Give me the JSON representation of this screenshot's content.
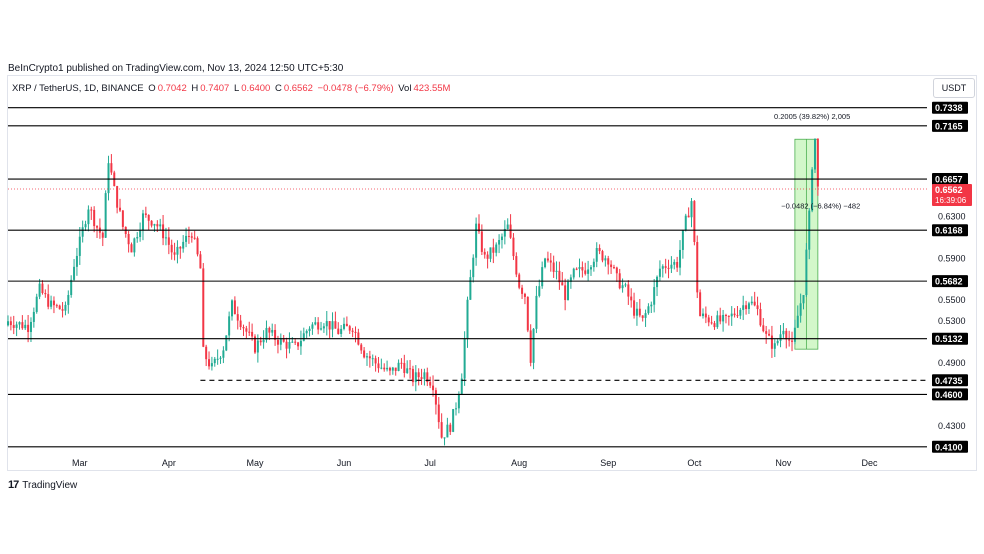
{
  "header": {
    "published": "BeInCrypto1 published on TradingView.com, Nov 13, 2024 12:50 UTC+5:30"
  },
  "legend": {
    "symbol": "XRP / TetherUS, 1D, BINANCE",
    "open_label": "O",
    "open": "0.7042",
    "high_label": "H",
    "high": "0.7407",
    "low_label": "L",
    "low": "0.6400",
    "close_label": "C",
    "close": "0.6562",
    "change": "−0.0478 (−6.79%)",
    "vol_label": "Vol",
    "vol": "423.55M"
  },
  "currency": "USDT",
  "footer": {
    "brand": "TradingView",
    "logo_icon": "tradingview-logo-icon"
  },
  "colors": {
    "up": "#22ab94",
    "down": "#f23645",
    "line": "#000000",
    "measure_fill": "#c8f5bd",
    "measure_edge": "#4caf50",
    "current_price_bg": "#f23645"
  },
  "chart_data": {
    "type": "candlestick",
    "ylim": [
      0.405,
      0.745
    ],
    "x_range": [
      "2024-02-05",
      "2024-12-21"
    ],
    "x_ticks": [
      {
        "label": "Mar",
        "date": "2024-03-01"
      },
      {
        "label": "Apr",
        "date": "2024-04-01"
      },
      {
        "label": "May",
        "date": "2024-05-01"
      },
      {
        "label": "Jun",
        "date": "2024-06-01"
      },
      {
        "label": "Jul",
        "date": "2024-07-01"
      },
      {
        "label": "Aug",
        "date": "2024-08-01"
      },
      {
        "label": "Sep",
        "date": "2024-09-01"
      },
      {
        "label": "Oct",
        "date": "2024-10-01"
      },
      {
        "label": "Nov",
        "date": "2024-11-01"
      },
      {
        "label": "Dec",
        "date": "2024-12-01"
      }
    ],
    "y_ticks": [
      "0.6300",
      "0.5900",
      "0.5500",
      "0.5300",
      "0.4900",
      "0.4300"
    ],
    "levels": [
      {
        "label": "0.7338",
        "value": 0.7338,
        "style": "solid"
      },
      {
        "label": "0.7165",
        "value": 0.7165,
        "style": "solid"
      },
      {
        "label": "0.6657",
        "value": 0.6657,
        "style": "solid"
      },
      {
        "label": "0.6168",
        "value": 0.6168,
        "style": "solid"
      },
      {
        "label": "0.5682",
        "value": 0.5682,
        "style": "solid"
      },
      {
        "label": "0.5132",
        "value": 0.5132,
        "style": "solid"
      },
      {
        "label": "0.4735",
        "value": 0.4735,
        "style": "dashed"
      },
      {
        "label": "0.4600",
        "value": 0.46,
        "style": "solid"
      },
      {
        "label": "0.4100",
        "value": 0.41,
        "style": "solid"
      }
    ],
    "current_price": {
      "label": "0.6562",
      "value": 0.6562,
      "countdown": "16:39:06"
    },
    "annotations": [
      {
        "text": "0.2005 (39.82%) 2,005",
        "date": "2024-11-11",
        "value": 0.723
      },
      {
        "text": "−0.0482 (−6.84%) −482",
        "date": "2024-11-14",
        "value": 0.6375
      }
    ],
    "measure_box": {
      "start": "2024-11-05",
      "end": "2024-11-13",
      "low": 0.5032,
      "high": 0.7037
    },
    "anchor_points": [
      {
        "date": "2024-02-05",
        "value": 0.53
      },
      {
        "date": "2024-02-12",
        "value": 0.525
      },
      {
        "date": "2024-02-16",
        "value": 0.56
      },
      {
        "date": "2024-02-20",
        "value": 0.545
      },
      {
        "date": "2024-02-25",
        "value": 0.54
      },
      {
        "date": "2024-02-28",
        "value": 0.585
      },
      {
        "date": "2024-03-01",
        "value": 0.605
      },
      {
        "date": "2024-03-04",
        "value": 0.64
      },
      {
        "date": "2024-03-07",
        "value": 0.62
      },
      {
        "date": "2024-03-09",
        "value": 0.61
      },
      {
        "date": "2024-03-11",
        "value": 0.685
      },
      {
        "date": "2024-03-13",
        "value": 0.655
      },
      {
        "date": "2024-03-16",
        "value": 0.62
      },
      {
        "date": "2024-03-19",
        "value": 0.6
      },
      {
        "date": "2024-03-23",
        "value": 0.63
      },
      {
        "date": "2024-03-27",
        "value": 0.625
      },
      {
        "date": "2024-03-31",
        "value": 0.61
      },
      {
        "date": "2024-04-03",
        "value": 0.59
      },
      {
        "date": "2024-04-06",
        "value": 0.605
      },
      {
        "date": "2024-04-09",
        "value": 0.615
      },
      {
        "date": "2024-04-12",
        "value": 0.58
      },
      {
        "date": "2024-04-13",
        "value": 0.5
      },
      {
        "date": "2024-04-16",
        "value": 0.485
      },
      {
        "date": "2024-04-20",
        "value": 0.505
      },
      {
        "date": "2024-04-23",
        "value": 0.545
      },
      {
        "date": "2024-04-27",
        "value": 0.525
      },
      {
        "date": "2024-05-01",
        "value": 0.505
      },
      {
        "date": "2024-05-05",
        "value": 0.52
      },
      {
        "date": "2024-05-10",
        "value": 0.51
      },
      {
        "date": "2024-05-15",
        "value": 0.505
      },
      {
        "date": "2024-05-20",
        "value": 0.525
      },
      {
        "date": "2024-05-25",
        "value": 0.53
      },
      {
        "date": "2024-05-30",
        "value": 0.52
      },
      {
        "date": "2024-06-04",
        "value": 0.525
      },
      {
        "date": "2024-06-08",
        "value": 0.5
      },
      {
        "date": "2024-06-12",
        "value": 0.49
      },
      {
        "date": "2024-06-17",
        "value": 0.48
      },
      {
        "date": "2024-06-21",
        "value": 0.49
      },
      {
        "date": "2024-06-25",
        "value": 0.475
      },
      {
        "date": "2024-06-29",
        "value": 0.48
      },
      {
        "date": "2024-07-02",
        "value": 0.47
      },
      {
        "date": "2024-07-05",
        "value": 0.42
      },
      {
        "date": "2024-07-08",
        "value": 0.43
      },
      {
        "date": "2024-07-10",
        "value": 0.45
      },
      {
        "date": "2024-07-12",
        "value": 0.48
      },
      {
        "date": "2024-07-14",
        "value": 0.545
      },
      {
        "date": "2024-07-17",
        "value": 0.62
      },
      {
        "date": "2024-07-20",
        "value": 0.59
      },
      {
        "date": "2024-07-24",
        "value": 0.6
      },
      {
        "date": "2024-07-28",
        "value": 0.62
      },
      {
        "date": "2024-08-01",
        "value": 0.565
      },
      {
        "date": "2024-08-03",
        "value": 0.555
      },
      {
        "date": "2024-08-05",
        "value": 0.495
      },
      {
        "date": "2024-08-07",
        "value": 0.55
      },
      {
        "date": "2024-08-10",
        "value": 0.59
      },
      {
        "date": "2024-08-14",
        "value": 0.575
      },
      {
        "date": "2024-08-17",
        "value": 0.555
      },
      {
        "date": "2024-08-20",
        "value": 0.575
      },
      {
        "date": "2024-08-24",
        "value": 0.58
      },
      {
        "date": "2024-08-28",
        "value": 0.595
      },
      {
        "date": "2024-09-01",
        "value": 0.59
      },
      {
        "date": "2024-09-04",
        "value": 0.57
      },
      {
        "date": "2024-09-07",
        "value": 0.56
      },
      {
        "date": "2024-09-10",
        "value": 0.54
      },
      {
        "date": "2024-09-13",
        "value": 0.53
      },
      {
        "date": "2024-09-16",
        "value": 0.55
      },
      {
        "date": "2024-09-19",
        "value": 0.58
      },
      {
        "date": "2024-09-22",
        "value": 0.585
      },
      {
        "date": "2024-09-25",
        "value": 0.585
      },
      {
        "date": "2024-09-28",
        "value": 0.625
      },
      {
        "date": "2024-09-30",
        "value": 0.645
      },
      {
        "date": "2024-10-02",
        "value": 0.56
      },
      {
        "date": "2024-10-03",
        "value": 0.535
      },
      {
        "date": "2024-10-08",
        "value": 0.53
      },
      {
        "date": "2024-10-12",
        "value": 0.53
      },
      {
        "date": "2024-10-16",
        "value": 0.54
      },
      {
        "date": "2024-10-20",
        "value": 0.55
      },
      {
        "date": "2024-10-23",
        "value": 0.54
      },
      {
        "date": "2024-10-26",
        "value": 0.515
      },
      {
        "date": "2024-10-29",
        "value": 0.505
      },
      {
        "date": "2024-11-01",
        "value": 0.525
      },
      {
        "date": "2024-11-04",
        "value": 0.505
      },
      {
        "date": "2024-11-06",
        "value": 0.535
      },
      {
        "date": "2024-11-08",
        "value": 0.56
      },
      {
        "date": "2024-11-10",
        "value": 0.63
      },
      {
        "date": "2024-11-11",
        "value": 0.68
      },
      {
        "date": "2024-11-12",
        "value": 0.7042
      },
      {
        "date": "2024-11-13",
        "value": 0.6562
      }
    ]
  }
}
